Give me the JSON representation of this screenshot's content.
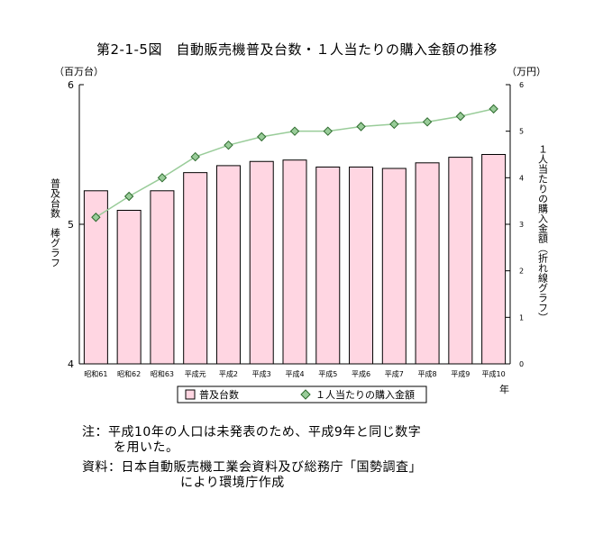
{
  "figure_title": "第2-1-5図　自動販売機普及台数・１人当たりの購入金額の推移",
  "notes": [
    "注：平成10年の人口は未発表のため、平成9年と同じ数字",
    "を用いた。",
    "資料：日本自動販売機工業会資料及び総務庁「国勢調査」",
    "により環境庁作成"
  ],
  "chart_data": {
    "type": "bar",
    "categories": [
      "昭和61",
      "昭和62",
      "昭和63",
      "平成元",
      "平成2",
      "平成3",
      "平成4",
      "平成5",
      "平成6",
      "平成7",
      "平成8",
      "平成9",
      "平成10"
    ],
    "series": [
      {
        "name": "普及台数",
        "type": "bar",
        "axis": "left",
        "color": "#ffd6e2",
        "values": [
          5.24,
          5.1,
          5.24,
          5.37,
          5.42,
          5.45,
          5.46,
          5.41,
          5.41,
          5.4,
          5.44,
          5.48,
          5.5
        ]
      },
      {
        "name": "１人当たりの購入金額",
        "type": "line",
        "axis": "right",
        "color": "#99cc99",
        "values": [
          3.15,
          3.6,
          4.0,
          4.45,
          4.7,
          4.88,
          5.0,
          5.0,
          5.1,
          5.15,
          5.2,
          5.32,
          5.48
        ]
      }
    ],
    "y_left": {
      "unit": "（百万台）",
      "label": "普及台数　棒グラフ",
      "ylim": [
        4,
        6
      ],
      "ticks": [
        "4",
        "5",
        "6"
      ]
    },
    "y_right": {
      "unit": "（万円）",
      "label": "１人当たりの購入金額（折れ線グラフ）",
      "ylim": [
        0,
        6
      ],
      "ticks": [
        "0",
        "1",
        "2",
        "3",
        "4",
        "5",
        "6"
      ]
    },
    "xlabel": "年",
    "legend": {
      "position": "bottom",
      "labels": [
        "普及台数",
        "１人当たりの購入金額"
      ]
    }
  }
}
